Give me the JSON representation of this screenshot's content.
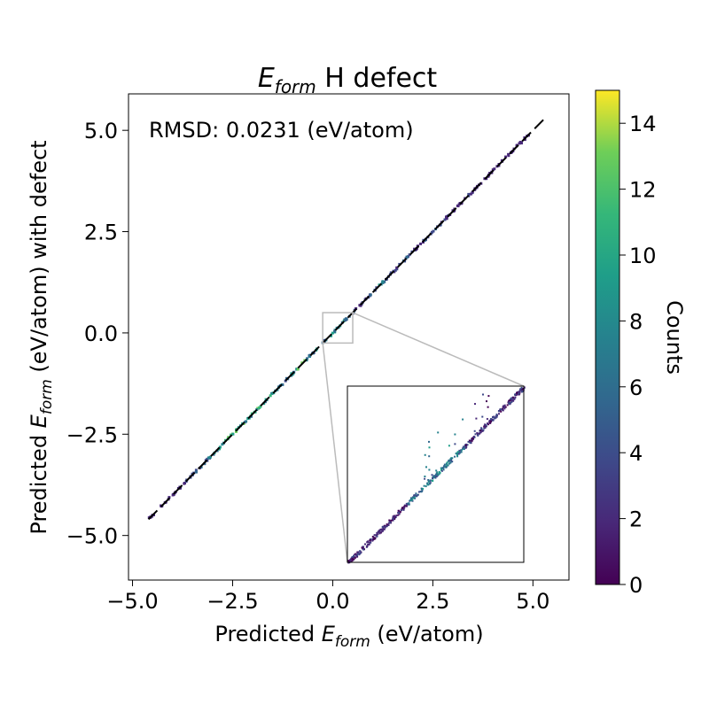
{
  "chart_data": {
    "type": "heatmap",
    "title": {
      "main": "E",
      "sub": "form",
      "rest": " H defect"
    },
    "xlabel": {
      "pre": "Predicted ",
      "main": "E",
      "sub": "form",
      "post": " (eV/atom)"
    },
    "ylabel": {
      "pre": "Predicted ",
      "main": "E",
      "sub": "form",
      "post": " (eV/atom) with defect"
    },
    "annotation": "RMSD: 0.0231 (eV/atom)",
    "xlim": [
      -5.1,
      5.9
    ],
    "ylim": [
      -6.1,
      5.9
    ],
    "x_ticks": [
      -5.0,
      -2.5,
      0.0,
      2.5,
      5.0
    ],
    "x_tick_labels": [
      "−5.0",
      "−2.5",
      "0.0",
      "2.5",
      "5.0"
    ],
    "y_ticks": [
      -5.0,
      -2.5,
      0.0,
      2.5,
      5.0
    ],
    "y_tick_labels": [
      "−5.0",
      "−2.5",
      "0.0",
      "2.5",
      "5.0"
    ],
    "reference_line": {
      "from": [
        -4.6,
        -4.6
      ],
      "to": [
        5.3,
        5.3
      ],
      "style": "dashed",
      "color": "#000000"
    },
    "colorbar": {
      "label": "Counts",
      "range": [
        0,
        15
      ],
      "ticks": [
        0,
        2,
        4,
        6,
        8,
        10,
        12,
        14
      ],
      "tick_labels": [
        "0",
        "2",
        "4",
        "6",
        "8",
        "10",
        "12",
        "14"
      ],
      "colormap": "viridis"
    },
    "zoom_region": {
      "x": [
        -0.25,
        0.5
      ],
      "y": [
        -0.25,
        0.5
      ]
    },
    "diagonal_counts": [
      [
        -4.5,
        1
      ],
      [
        -4.2,
        1
      ],
      [
        -4.0,
        2
      ],
      [
        -3.8,
        3
      ],
      [
        -3.6,
        4
      ],
      [
        -3.4,
        5
      ],
      [
        -3.2,
        7
      ],
      [
        -3.0,
        9
      ],
      [
        -2.8,
        11
      ],
      [
        -2.6,
        13
      ],
      [
        -2.4,
        12
      ],
      [
        -2.2,
        14
      ],
      [
        -2.0,
        13
      ],
      [
        -1.8,
        12
      ],
      [
        -1.6,
        11
      ],
      [
        -1.4,
        9
      ],
      [
        -1.2,
        8
      ],
      [
        -1.0,
        10
      ],
      [
        -0.8,
        13
      ],
      [
        -0.6,
        11
      ],
      [
        -0.4,
        9
      ],
      [
        -0.2,
        8
      ],
      [
        0.0,
        12
      ],
      [
        0.2,
        10
      ],
      [
        0.4,
        6
      ],
      [
        0.6,
        5
      ],
      [
        0.8,
        4
      ],
      [
        1.0,
        5
      ],
      [
        1.2,
        8
      ],
      [
        1.4,
        6
      ],
      [
        1.6,
        5
      ],
      [
        1.8,
        7
      ],
      [
        2.0,
        4
      ],
      [
        2.2,
        3
      ],
      [
        2.4,
        5
      ],
      [
        2.6,
        6
      ],
      [
        2.8,
        3
      ],
      [
        3.0,
        2
      ],
      [
        3.2,
        2
      ],
      [
        3.4,
        3
      ],
      [
        3.6,
        2
      ],
      [
        3.8,
        2
      ],
      [
        4.0,
        1
      ],
      [
        4.2,
        2
      ],
      [
        4.4,
        1
      ],
      [
        4.6,
        1
      ],
      [
        4.8,
        1
      ]
    ]
  }
}
